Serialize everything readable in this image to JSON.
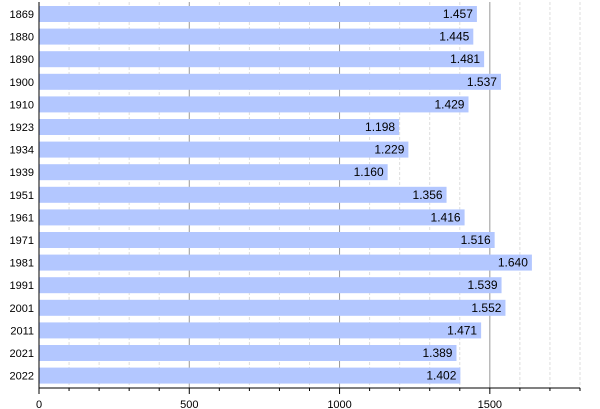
{
  "chart_data": {
    "type": "bar",
    "orientation": "horizontal",
    "categories": [
      "1869",
      "1880",
      "1890",
      "1900",
      "1910",
      "1923",
      "1934",
      "1939",
      "1951",
      "1961",
      "1971",
      "1981",
      "1991",
      "2001",
      "2011",
      "2021",
      "2022"
    ],
    "values": [
      1457,
      1445,
      1481,
      1537,
      1429,
      1198,
      1229,
      1160,
      1356,
      1416,
      1516,
      1640,
      1539,
      1552,
      1471,
      1389,
      1402
    ],
    "data_labels": [
      "1.457",
      "1.445",
      "1.481",
      "1.537",
      "1.429",
      "1.198",
      "1.229",
      "1.160",
      "1.356",
      "1.416",
      "1.516",
      "1.640",
      "1.539",
      "1.552",
      "1.471",
      "1.389",
      "1.402"
    ],
    "xlim": [
      0,
      1800
    ],
    "xticks": [
      0,
      500,
      1000,
      1500
    ],
    "xtick_labels": [
      "0",
      "500",
      "1000",
      "1500"
    ],
    "minor_tick_step": 100,
    "grid": true,
    "bar_color": "#b3c7ff",
    "major_grid_color": "#999999",
    "minor_grid_color": "#dddddd"
  }
}
